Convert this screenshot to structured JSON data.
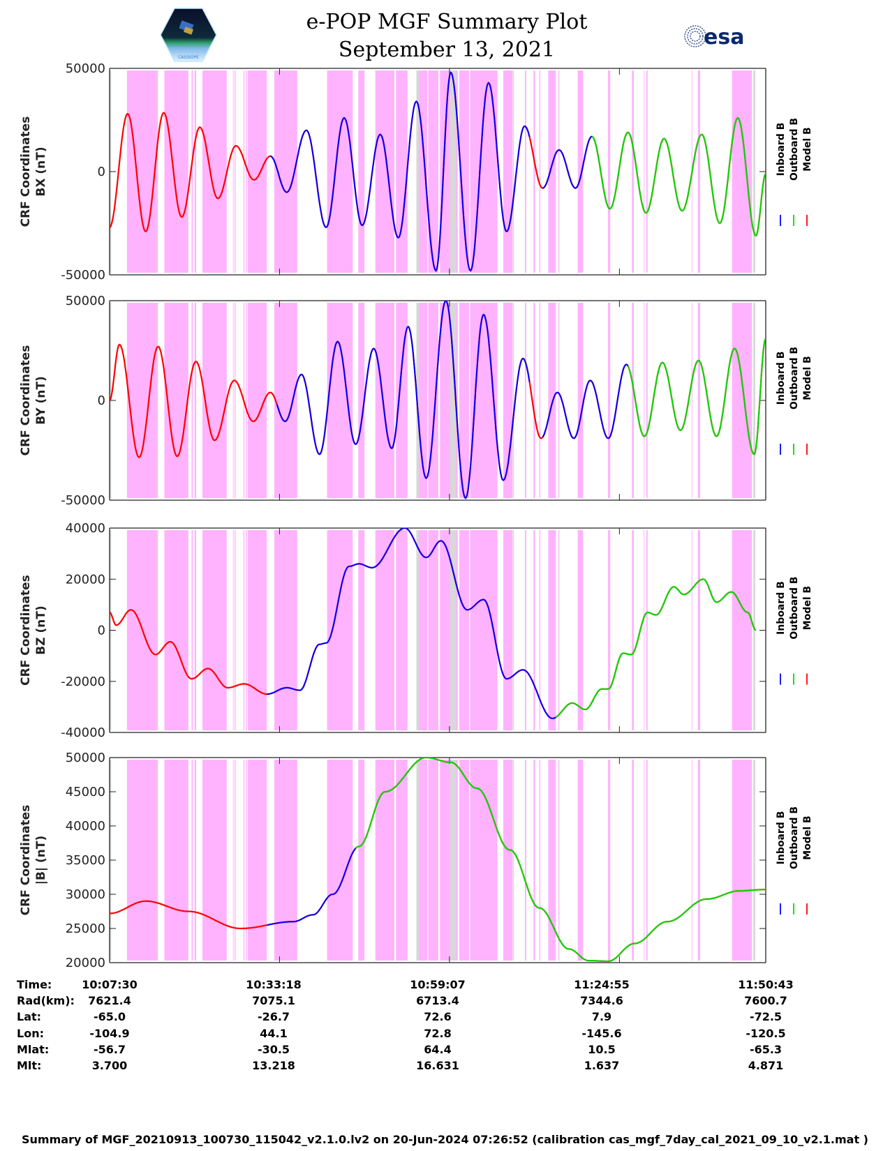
{
  "header": {
    "title": "e-POP MGF Summary Plot",
    "date": "September 13, 2021",
    "left_logo": "cassiope-logo",
    "left_logo_text": "CASSIOPE",
    "right_logo": "esa-logo",
    "right_logo_text": "esa"
  },
  "colors": {
    "inboard": "#0000ff",
    "outboard": "#00dd00",
    "model": "#ff0000",
    "band_pink": "#ffb3ff",
    "band_gray": "#d8d8d8",
    "ylabel": "#222222"
  },
  "legend": {
    "entries": [
      "Inboard B",
      "Outboard B",
      "Model B"
    ]
  },
  "chart_data": [
    {
      "type": "line",
      "title": "",
      "ylabel": [
        "CRF Coordinates",
        "BX (nT)"
      ],
      "ylim": [
        -50000,
        50000
      ],
      "yticks": [
        50000,
        0,
        -50000
      ],
      "ytick_labels": [
        "50000",
        "0",
        "-50000"
      ],
      "x_minutes": [
        0,
        97.2
      ],
      "series_note": "Inboard B blue, Outboard B green, Model B red (overlaid)",
      "extrema": [
        [
          0,
          -27000
        ],
        [
          5.5,
          28000
        ],
        [
          11,
          -29000
        ],
        [
          16.5,
          28500
        ],
        [
          22,
          -22000
        ],
        [
          27.5,
          21500
        ],
        [
          33,
          -13000
        ],
        [
          38.5,
          12500
        ],
        [
          44,
          -4000
        ],
        [
          49,
          7500
        ],
        [
          54,
          -10000
        ],
        [
          60,
          20000
        ],
        [
          66,
          -27000
        ],
        [
          71.5,
          26000
        ],
        [
          77,
          -26000
        ],
        [
          82.5,
          18000
        ],
        [
          88,
          -32000
        ],
        [
          93.5,
          34000
        ],
        [
          99.5,
          -48000
        ],
        [
          104,
          48000
        ],
        [
          110,
          -48000
        ],
        [
          115.5,
          43000
        ],
        [
          121,
          -29000
        ],
        [
          126.5,
          22000
        ],
        [
          132,
          -8000
        ],
        [
          137,
          10500
        ],
        [
          142,
          -8000
        ],
        [
          147,
          17000
        ],
        [
          152.5,
          -18000
        ],
        [
          158,
          19000
        ],
        [
          163.5,
          -20000
        ],
        [
          169,
          16000
        ],
        [
          174.5,
          -19000
        ],
        [
          180.5,
          18000
        ],
        [
          186,
          -25000
        ],
        [
          191.5,
          26000
        ],
        [
          197,
          -31000
        ],
        [
          200,
          -1000
        ]
      ],
      "inboard_segments_minutes": [
        [
          49,
          128
        ],
        [
          132,
          147
        ]
      ],
      "outboard_segments_minutes": [
        [
          147,
          200
        ]
      ]
    },
    {
      "type": "line",
      "title": "",
      "ylabel": [
        "CRF Coordinates",
        "BY (nT)"
      ],
      "ylim": [
        -50000,
        50000
      ],
      "yticks": [
        50000,
        0,
        -50000
      ],
      "ytick_labels": [
        "50000",
        "0",
        "-50000"
      ],
      "extrema": [
        [
          0,
          0
        ],
        [
          3,
          28000
        ],
        [
          9,
          -28500
        ],
        [
          14.8,
          27000
        ],
        [
          20.6,
          -28000
        ],
        [
          26.3,
          19500
        ],
        [
          32,
          -20000
        ],
        [
          38,
          10000
        ],
        [
          43.8,
          -10500
        ],
        [
          49,
          4000
        ],
        [
          53.5,
          -10500
        ],
        [
          58.5,
          13000
        ],
        [
          64,
          -27000
        ],
        [
          69.5,
          29500
        ],
        [
          75,
          -22000
        ],
        [
          80.5,
          26000
        ],
        [
          86,
          -24000
        ],
        [
          91,
          37000
        ],
        [
          96.5,
          -39000
        ],
        [
          102.5,
          50000
        ],
        [
          108.5,
          -49000
        ],
        [
          114,
          43000
        ],
        [
          120,
          -40000
        ],
        [
          126,
          21000
        ],
        [
          131.5,
          -19000
        ],
        [
          136.5,
          4000
        ],
        [
          141.5,
          -19000
        ],
        [
          146.5,
          10000
        ],
        [
          152,
          -19000
        ],
        [
          157.5,
          18000
        ],
        [
          163,
          -18000
        ],
        [
          168.5,
          19000
        ],
        [
          174,
          -15000
        ],
        [
          179.5,
          20000
        ],
        [
          185,
          -18000
        ],
        [
          190.5,
          26000
        ],
        [
          196.5,
          -27000
        ],
        [
          200,
          31000
        ]
      ],
      "inboard_segments_minutes": [
        [
          51,
          128
        ],
        [
          132,
          158
        ]
      ],
      "outboard_segments_minutes": [
        [
          158,
          200
        ]
      ]
    },
    {
      "type": "line",
      "title": "",
      "ylabel": [
        "CRF Coordinates",
        "BZ (nT)"
      ],
      "ylim": [
        -40000,
        40000
      ],
      "yticks": [
        40000,
        20000,
        0,
        -20000,
        -40000
      ],
      "ytick_labels": [
        "40000",
        "20000",
        "0",
        "-20000",
        "-40000"
      ],
      "extrema": [
        [
          0,
          7000
        ],
        [
          2,
          2000
        ],
        [
          6.5,
          8000
        ],
        [
          14,
          -9500
        ],
        [
          18.5,
          -4500
        ],
        [
          25,
          -19000
        ],
        [
          30,
          -15000
        ],
        [
          36,
          -22500
        ],
        [
          41,
          -21000
        ],
        [
          48,
          -25000
        ],
        [
          54,
          -22500
        ],
        [
          58,
          -23500
        ],
        [
          64,
          -5500
        ],
        [
          66,
          -5000
        ],
        [
          73,
          25000
        ],
        [
          76,
          26000
        ],
        [
          80,
          24500
        ],
        [
          90,
          40000
        ],
        [
          96.5,
          28500
        ],
        [
          101,
          35000
        ],
        [
          109,
          8000
        ],
        [
          114,
          12000
        ],
        [
          121,
          -19000
        ],
        [
          126,
          -15500
        ],
        [
          135,
          -34500
        ],
        [
          141,
          -28500
        ],
        [
          145,
          -31000
        ],
        [
          150,
          -23000
        ],
        [
          152,
          -23000
        ],
        [
          156.5,
          -9000
        ],
        [
          159,
          -9500
        ],
        [
          164,
          7000
        ],
        [
          166.5,
          6000
        ],
        [
          172,
          17000
        ],
        [
          175,
          14000
        ],
        [
          181,
          20000
        ],
        [
          185,
          11000
        ],
        [
          189.5,
          15000
        ],
        [
          194.5,
          7000
        ],
        [
          197,
          0
        ]
      ],
      "inboard_segments_minutes": [
        [
          48,
          136
        ]
      ],
      "outboard_segments_minutes": [
        [
          136,
          200
        ]
      ]
    },
    {
      "type": "line",
      "title": "",
      "ylabel": [
        "CRF Coordinates",
        "|B| (nT)"
      ],
      "ylim": [
        20000,
        50000
      ],
      "yticks": [
        50000,
        45000,
        40000,
        35000,
        30000,
        25000,
        20000
      ],
      "ytick_labels": [
        "50000",
        "45000",
        "40000",
        "35000",
        "30000",
        "25000",
        "20000"
      ],
      "extrema": [
        [
          0,
          27200
        ],
        [
          11,
          29000
        ],
        [
          24,
          27500
        ],
        [
          40,
          25000
        ],
        [
          56,
          26000
        ],
        [
          62,
          27000
        ],
        [
          68,
          30000
        ],
        [
          76,
          37000
        ],
        [
          84,
          45000
        ],
        [
          96.5,
          50000
        ],
        [
          104,
          49300
        ],
        [
          112,
          45500
        ],
        [
          122,
          36500
        ],
        [
          131,
          28000
        ],
        [
          140,
          22000
        ],
        [
          146,
          20300
        ],
        [
          152,
          20200
        ],
        [
          160,
          22800
        ],
        [
          170,
          26000
        ],
        [
          182,
          29300
        ],
        [
          192,
          30500
        ],
        [
          200,
          30700
        ]
      ],
      "inboard_segments_minutes": [
        [
          48,
          75
        ]
      ],
      "outboard_segments_minutes": [
        [
          75,
          200
        ]
      ]
    }
  ],
  "time_axis": {
    "start_minutes_label": "10:07:30",
    "range_minutes": 200,
    "tick_minutes": [
      0,
      51.8,
      103.6,
      155.4,
      207.2
    ]
  },
  "bands": {
    "pink_minutes": [
      [
        5.3,
        14.5
      ],
      [
        16.7,
        24
      ],
      [
        25,
        25.4
      ],
      [
        25.9,
        26.4
      ],
      [
        28.3,
        35.7
      ],
      [
        37.6,
        37.8
      ],
      [
        38.1,
        38.4
      ],
      [
        40.8,
        41.1
      ],
      [
        41.5,
        41.8
      ],
      [
        42.1,
        47.9
      ],
      [
        50.2,
        57.2
      ],
      [
        66.3,
        74.1
      ],
      [
        75.8,
        77.7
      ],
      [
        81,
        86.8
      ],
      [
        87.3,
        90.8
      ],
      [
        94.2,
        96.8
      ],
      [
        97.1,
        100.2
      ],
      [
        100.7,
        106.1
      ],
      [
        106.6,
        109.6
      ],
      [
        109.9,
        118.2
      ],
      [
        120,
        122.8
      ],
      [
        126.6,
        127
      ],
      [
        129.2,
        129.7
      ],
      [
        131,
        131.3
      ],
      [
        133.7,
        136
      ],
      [
        136.8,
        137.1
      ],
      [
        142.7,
        144.3
      ],
      [
        151.9,
        152.6
      ],
      [
        159.2,
        159.8
      ],
      [
        162.8,
        162.9
      ],
      [
        163.6,
        164
      ],
      [
        177.4,
        177.5
      ],
      [
        179.3,
        180
      ],
      [
        189.7,
        195.8
      ]
    ],
    "gray_minutes": [
      [
        0,
        0.5
      ],
      [
        14.4,
        14.8
      ],
      [
        93.5,
        94.3
      ],
      [
        103.8,
        105.6
      ],
      [
        122.9,
        123.2
      ],
      [
        196.2,
        196.8
      ]
    ]
  },
  "footer": {
    "rows": [
      {
        "label": "Time:",
        "values": [
          "10:07:30",
          "10:33:18",
          "10:59:07",
          "11:24:55",
          "11:50:43"
        ]
      },
      {
        "label": "Rad(km):",
        "values": [
          "7621.4",
          "7075.1",
          "6713.4",
          "7344.6",
          "7600.7"
        ]
      },
      {
        "label": "Lat:",
        "values": [
          "-65.0",
          "-26.7",
          "72.6",
          "7.9",
          "-72.5"
        ]
      },
      {
        "label": "Lon:",
        "values": [
          "-104.9",
          "44.1",
          "72.8",
          "-145.6",
          "-120.5"
        ]
      },
      {
        "label": "Mlat:",
        "values": [
          "-56.7",
          "-30.5",
          "64.4",
          "10.5",
          "-65.3"
        ]
      },
      {
        "label": "Mlt:",
        "values": [
          "3.700",
          "13.218",
          "16.631",
          "1.637",
          "4.871"
        ]
      }
    ],
    "caption": "Summary of MGF_20210913_100730_115042_v2.1.0.lv2 on 20-Jun-2024 07:26:52 (calibration cas_mgf_7day_cal_2021_09_10_v2.1.mat )"
  }
}
